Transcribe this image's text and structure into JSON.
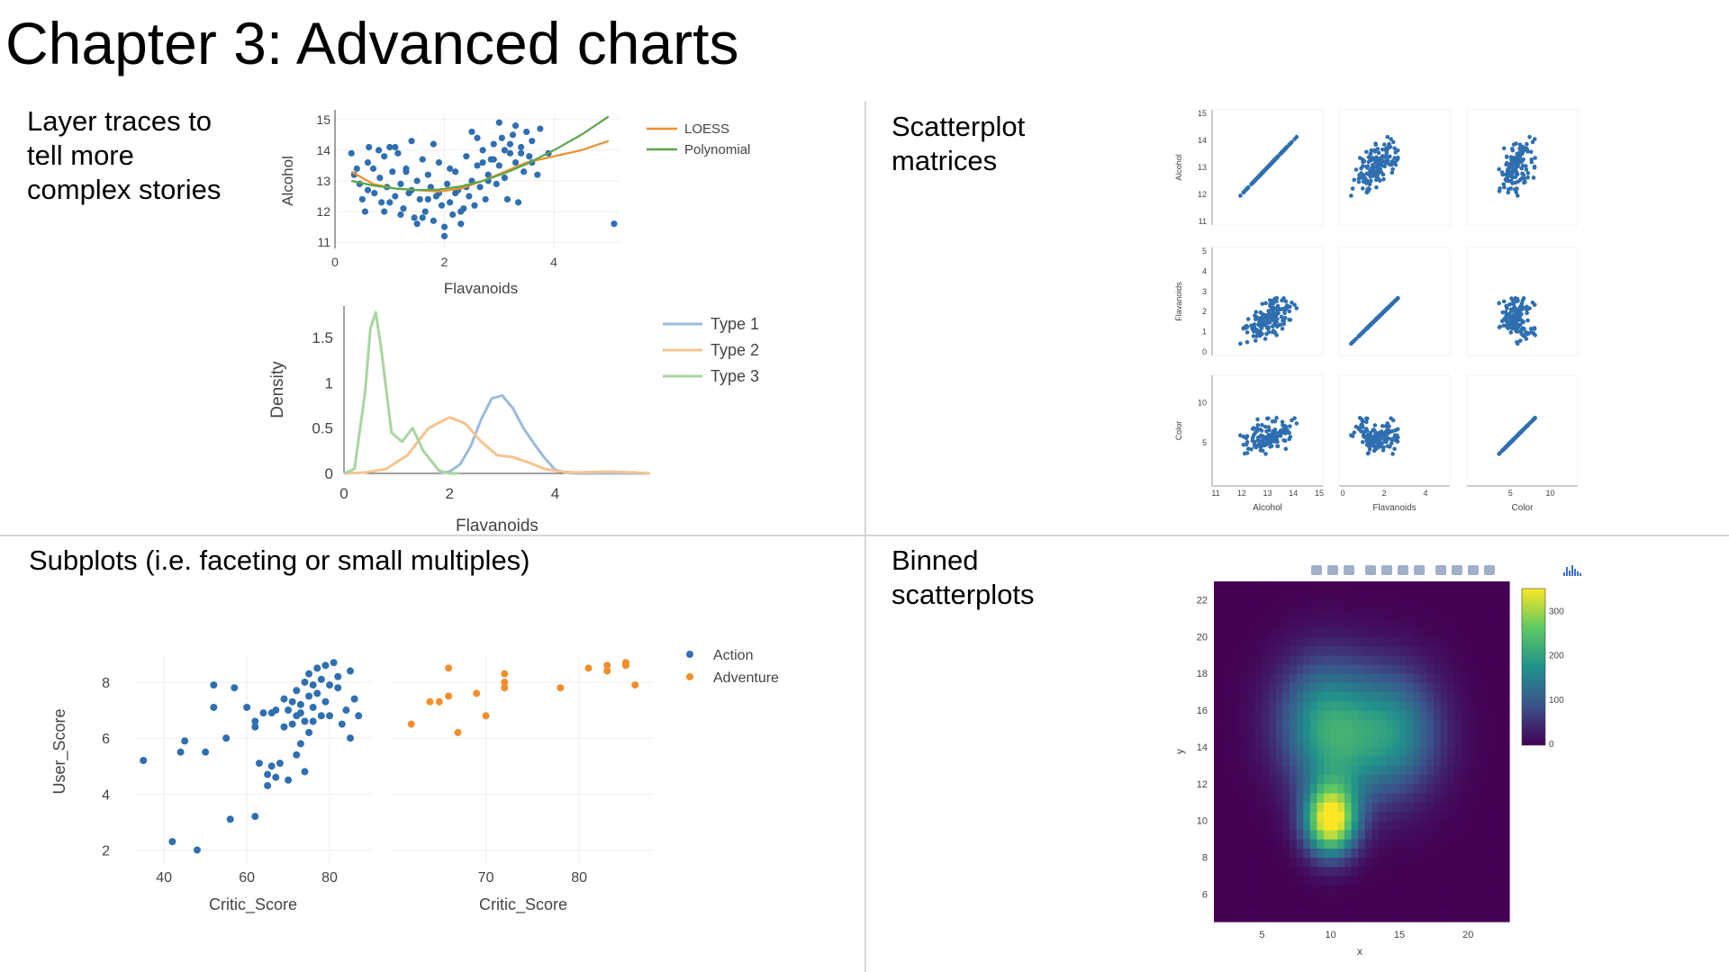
{
  "title": "Chapter 3: Advanced charts",
  "captions": {
    "layer": "Layer traces to tell more complex stories",
    "splom": "Scatterplot matrices",
    "subplots": "Subplots (i.e. faceting or small multiples)",
    "binned": "Binned scatterplots"
  },
  "chart_data": [
    {
      "id": "layer_scatter",
      "type": "scatter",
      "xlabel": "Flavanoids",
      "ylabel": "Alcohol",
      "xlim": [
        0,
        5.2
      ],
      "ylim": [
        10.8,
        15.2
      ],
      "x_ticks": [
        "0",
        "2",
        "4"
      ],
      "y_ticks": [
        "11",
        "12",
        "13",
        "14",
        "15"
      ],
      "colors": {
        "points": "#2f6fb0",
        "LOESS": "#f28e2b",
        "Polynomial": "#5aa64a"
      },
      "points": [
        [
          0.3,
          13.9
        ],
        [
          0.35,
          13.2
        ],
        [
          0.45,
          12.9
        ],
        [
          0.5,
          12.4
        ],
        [
          0.55,
          12.0
        ],
        [
          0.6,
          13.6
        ],
        [
          0.62,
          14.1
        ],
        [
          0.7,
          13.4
        ],
        [
          0.72,
          12.6
        ],
        [
          0.8,
          14.0
        ],
        [
          0.82,
          13.1
        ],
        [
          0.85,
          12.3
        ],
        [
          0.9,
          13.8
        ],
        [
          0.95,
          12.8
        ],
        [
          1.0,
          14.1
        ],
        [
          1.05,
          13.3
        ],
        [
          1.1,
          12.5
        ],
        [
          1.15,
          13.9
        ],
        [
          1.2,
          12.9
        ],
        [
          1.25,
          12.1
        ],
        [
          1.3,
          13.4
        ],
        [
          1.35,
          12.6
        ],
        [
          1.4,
          14.3
        ],
        [
          1.45,
          11.8
        ],
        [
          1.5,
          13.0
        ],
        [
          1.55,
          12.4
        ],
        [
          1.6,
          13.7
        ],
        [
          1.65,
          12.0
        ],
        [
          1.7,
          13.2
        ],
        [
          1.75,
          12.8
        ],
        [
          1.8,
          11.7
        ],
        [
          1.85,
          12.5
        ],
        [
          1.9,
          13.6
        ],
        [
          1.95,
          12.2
        ],
        [
          2.0,
          11.5
        ],
        [
          2.05,
          12.9
        ],
        [
          2.1,
          12.3
        ],
        [
          2.15,
          11.9
        ],
        [
          2.2,
          13.3
        ],
        [
          2.25,
          12.7
        ],
        [
          2.3,
          11.6
        ],
        [
          2.35,
          12.1
        ],
        [
          2.4,
          13.8
        ],
        [
          2.45,
          12.5
        ],
        [
          2.5,
          13.0
        ],
        [
          2.55,
          12.2
        ],
        [
          2.6,
          13.5
        ],
        [
          2.65,
          12.8
        ],
        [
          2.7,
          14.0
        ],
        [
          2.75,
          12.4
        ],
        [
          2.8,
          13.2
        ],
        [
          2.85,
          13.7
        ],
        [
          2.9,
          14.2
        ],
        [
          2.95,
          12.9
        ],
        [
          3.0,
          13.5
        ],
        [
          3.05,
          14.4
        ],
        [
          3.1,
          13.1
        ],
        [
          3.15,
          12.4
        ],
        [
          3.2,
          13.9
        ],
        [
          3.25,
          14.5
        ],
        [
          3.3,
          13.6
        ],
        [
          3.35,
          12.3
        ],
        [
          3.4,
          14.1
        ],
        [
          3.45,
          13.3
        ],
        [
          3.5,
          14.6
        ],
        [
          3.55,
          13.8
        ],
        [
          3.6,
          14.3
        ],
        [
          3.7,
          13.2
        ],
        [
          3.75,
          14.7
        ],
        [
          3.9,
          13.9
        ],
        [
          2.0,
          11.2
        ],
        [
          1.5,
          11.6
        ],
        [
          0.9,
          12.0
        ],
        [
          1.2,
          11.9
        ],
        [
          2.3,
          12.0
        ],
        [
          5.1,
          11.6
        ],
        [
          2.6,
          14.4
        ],
        [
          3.0,
          14.9
        ],
        [
          1.8,
          14.2
        ],
        [
          1.3,
          13.3
        ],
        [
          0.6,
          12.7
        ],
        [
          2.1,
          13.4
        ],
        [
          2.8,
          13.0
        ],
        [
          3.4,
          13.9
        ],
        [
          1.7,
          12.4
        ],
        [
          2.5,
          14.6
        ],
        [
          3.2,
          14.2
        ],
        [
          1.0,
          12.3
        ],
        [
          2.2,
          12.6
        ],
        [
          1.6,
          11.8
        ],
        [
          3.6,
          13.6
        ],
        [
          2.9,
          13.7
        ],
        [
          0.4,
          13.4
        ],
        [
          1.1,
          14.1
        ],
        [
          2.4,
          12.8
        ],
        [
          3.1,
          14.0
        ],
        [
          1.4,
          12.7
        ],
        [
          1.9,
          12.6
        ],
        [
          3.3,
          14.8
        ],
        [
          2.7,
          13.6
        ]
      ],
      "series": [
        {
          "name": "LOESS",
          "x": [
            0.3,
            0.7,
            1.1,
            1.5,
            1.9,
            2.3,
            2.7,
            3.1,
            3.5,
            4.0,
            4.5,
            5.0
          ],
          "y": [
            13.3,
            12.9,
            12.75,
            12.7,
            12.65,
            12.75,
            13.0,
            13.3,
            13.6,
            13.8,
            14.0,
            14.3
          ]
        },
        {
          "name": "Polynomial",
          "x": [
            0.3,
            0.7,
            1.1,
            1.5,
            1.9,
            2.3,
            2.7,
            3.1,
            3.5,
            4.0,
            4.5,
            5.0
          ],
          "y": [
            13.0,
            12.85,
            12.75,
            12.7,
            12.72,
            12.82,
            13.0,
            13.25,
            13.55,
            14.0,
            14.5,
            15.1
          ]
        }
      ]
    },
    {
      "id": "layer_density",
      "type": "line",
      "xlabel": "Flavanoids",
      "ylabel": "Density",
      "xlim": [
        0,
        5.8
      ],
      "ylim": [
        0,
        1.85
      ],
      "x_ticks": [
        "0",
        "2",
        "4"
      ],
      "y_ticks": [
        "0",
        "0.5",
        "1",
        "1.5"
      ],
      "series": [
        {
          "name": "Type 1",
          "color": "#9bbbdc",
          "x": [
            1.8,
            2.0,
            2.2,
            2.4,
            2.6,
            2.8,
            3.0,
            3.2,
            3.4,
            3.6,
            3.8,
            4.0,
            4.2,
            4.4,
            5.8
          ],
          "y": [
            0.0,
            0.02,
            0.1,
            0.3,
            0.6,
            0.83,
            0.86,
            0.72,
            0.5,
            0.33,
            0.17,
            0.04,
            0.01,
            0.0,
            0.0
          ]
        },
        {
          "name": "Type 2",
          "color": "#f6c48f",
          "x": [
            0,
            0.4,
            0.8,
            1.2,
            1.6,
            2.0,
            2.3,
            2.6,
            2.9,
            3.2,
            3.5,
            3.8,
            4.1,
            4.4,
            5.0,
            5.5,
            5.8
          ],
          "y": [
            0,
            0.01,
            0.05,
            0.2,
            0.5,
            0.62,
            0.55,
            0.35,
            0.2,
            0.18,
            0.12,
            0.05,
            0.02,
            0.01,
            0.02,
            0.01,
            0.0
          ]
        },
        {
          "name": "Type 3",
          "color": "#a8d5a0",
          "x": [
            0,
            0.2,
            0.4,
            0.5,
            0.6,
            0.7,
            0.9,
            1.1,
            1.3,
            1.5,
            1.8,
            2.0,
            2.2
          ],
          "y": [
            0,
            0.05,
            0.9,
            1.6,
            1.78,
            1.4,
            0.45,
            0.35,
            0.5,
            0.25,
            0.03,
            0.0,
            0.0
          ]
        }
      ]
    },
    {
      "id": "splom",
      "type": "scatter",
      "dimensions": [
        "Alcohol",
        "Flavanoids",
        "Color"
      ],
      "alcohol_ticks": [
        "11",
        "12",
        "13",
        "14",
        "15"
      ],
      "flavanoids_ticks": [
        "0",
        "2",
        "4"
      ],
      "color_ticks": [
        "5",
        "10"
      ],
      "flavanoids_y_ticks": [
        "0",
        "1",
        "2",
        "3",
        "4",
        "5"
      ],
      "color_y_ticks": [
        "5",
        "10"
      ],
      "point_color": "#2f6fb0"
    },
    {
      "id": "subplots",
      "type": "scatter",
      "ylabel": "User_Score",
      "xlabel": "Critic_Score",
      "y_ticks": [
        "2",
        "4",
        "6",
        "8"
      ],
      "panels": [
        {
          "name": "Action",
          "color": "#2f6fb0",
          "xlim": [
            33,
            90
          ],
          "x_ticks": [
            "40",
            "60",
            "80"
          ],
          "points": [
            [
              35,
              5.2
            ],
            [
              42,
              2.3
            ],
            [
              44,
              5.5
            ],
            [
              45,
              5.9
            ],
            [
              48,
              2.0
            ],
            [
              50,
              5.5
            ],
            [
              52,
              7.9
            ],
            [
              52,
              7.1
            ],
            [
              55,
              6.0
            ],
            [
              56,
              3.1
            ],
            [
              57,
              7.8
            ],
            [
              60,
              7.1
            ],
            [
              62,
              3.2
            ],
            [
              62,
              6.6
            ],
            [
              62,
              6.4
            ],
            [
              63,
              5.1
            ],
            [
              64,
              6.9
            ],
            [
              65,
              4.7
            ],
            [
              65,
              4.3
            ],
            [
              66,
              6.9
            ],
            [
              66,
              5.0
            ],
            [
              67,
              7.0
            ],
            [
              67,
              4.6
            ],
            [
              68,
              5.1
            ],
            [
              69,
              6.4
            ],
            [
              69,
              7.4
            ],
            [
              70,
              4.5
            ],
            [
              70,
              7.0
            ],
            [
              71,
              6.5
            ],
            [
              71,
              7.3
            ],
            [
              72,
              5.4
            ],
            [
              72,
              7.7
            ],
            [
              72,
              6.8
            ],
            [
              73,
              5.8
            ],
            [
              73,
              7.2
            ],
            [
              73,
              6.9
            ],
            [
              74,
              8.0
            ],
            [
              74,
              6.6
            ],
            [
              74,
              4.8
            ],
            [
              75,
              8.3
            ],
            [
              75,
              7.5
            ],
            [
              75,
              6.2
            ],
            [
              76,
              7.9
            ],
            [
              76,
              7.1
            ],
            [
              76,
              6.6
            ],
            [
              77,
              8.5
            ],
            [
              77,
              7.6
            ],
            [
              78,
              6.8
            ],
            [
              78,
              8.1
            ],
            [
              79,
              8.6
            ],
            [
              79,
              7.3
            ],
            [
              80,
              7.9
            ],
            [
              80,
              6.8
            ],
            [
              81,
              8.7
            ],
            [
              82,
              7.8
            ],
            [
              82,
              8.2
            ],
            [
              83,
              6.5
            ],
            [
              84,
              7.0
            ],
            [
              85,
              8.4
            ],
            [
              85,
              6.0
            ],
            [
              86,
              7.4
            ],
            [
              87,
              6.8
            ]
          ]
        },
        {
          "name": "Adventure",
          "color": "#f28e2b",
          "xlim": [
            60,
            88
          ],
          "x_ticks": [
            "70",
            "80"
          ],
          "points": [
            [
              62,
              6.5
            ],
            [
              64,
              7.3
            ],
            [
              65,
              7.3
            ],
            [
              66,
              8.5
            ],
            [
              66,
              7.5
            ],
            [
              67,
              6.2
            ],
            [
              69,
              7.6
            ],
            [
              70,
              6.8
            ],
            [
              72,
              8.3
            ],
            [
              72,
              8.0
            ],
            [
              72,
              7.8
            ],
            [
              78,
              7.8
            ],
            [
              81,
              8.5
            ],
            [
              83,
              8.6
            ],
            [
              83,
              8.4
            ],
            [
              85,
              8.7
            ],
            [
              85,
              8.6
            ],
            [
              86,
              7.9
            ]
          ]
        }
      ]
    },
    {
      "id": "binned",
      "type": "heatmap",
      "xlabel": "x",
      "ylabel": "y",
      "xlim": [
        1.5,
        23
      ],
      "ylim": [
        4.5,
        23
      ],
      "x_ticks": [
        "5",
        "10",
        "15",
        "20"
      ],
      "y_ticks": [
        "6",
        "8",
        "10",
        "12",
        "14",
        "16",
        "18",
        "20",
        "22"
      ],
      "colorbar_ticks": [
        "0",
        "100",
        "200",
        "300"
      ],
      "colorscale": [
        "#440154",
        "#3b528b",
        "#21918c",
        "#5ec962",
        "#fde725"
      ]
    }
  ]
}
